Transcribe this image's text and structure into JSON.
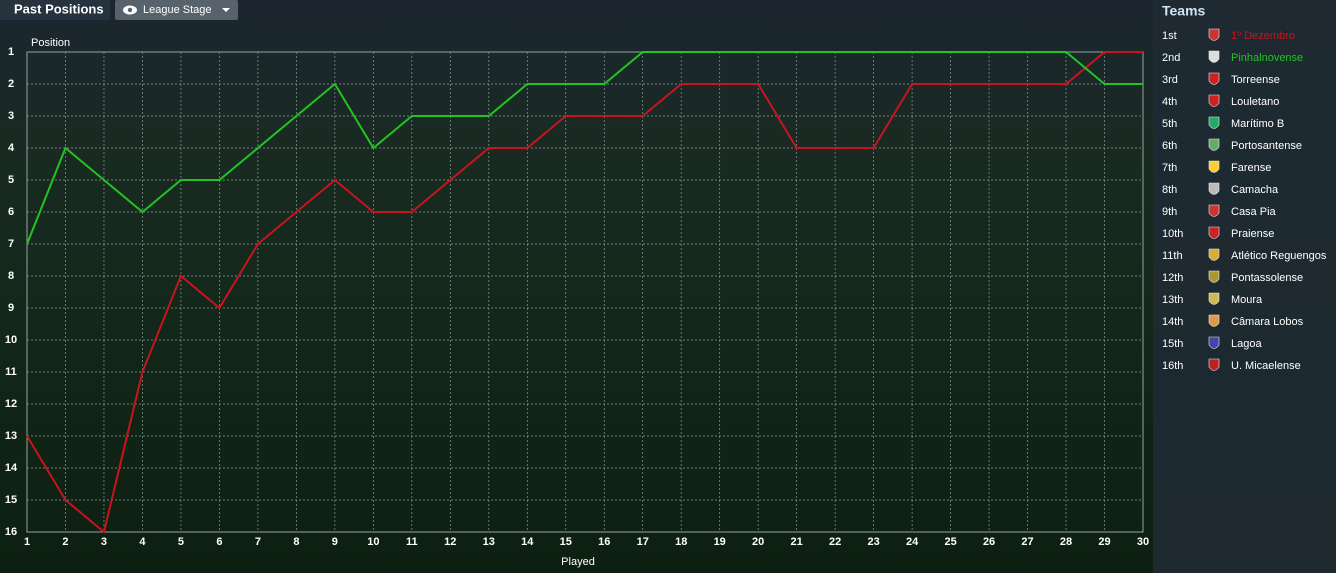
{
  "header": {
    "title": "Past Positions",
    "dropdown": "League Stage"
  },
  "chart_data": {
    "type": "line",
    "y_label": "Position",
    "x_label": "Played",
    "x": [
      1,
      2,
      3,
      4,
      5,
      6,
      7,
      8,
      9,
      10,
      11,
      12,
      13,
      14,
      15,
      16,
      17,
      18,
      19,
      20,
      21,
      22,
      23,
      24,
      25,
      26,
      27,
      28,
      29,
      30
    ],
    "xlim": [
      1,
      30
    ],
    "ylim": [
      16,
      1
    ],
    "xticks": [
      1,
      2,
      3,
      4,
      5,
      6,
      7,
      8,
      9,
      10,
      11,
      12,
      13,
      14,
      15,
      16,
      17,
      18,
      19,
      20,
      21,
      22,
      23,
      24,
      25,
      26,
      27,
      28,
      29,
      30
    ],
    "yticks": [
      1,
      2,
      3,
      4,
      5,
      6,
      7,
      8,
      9,
      10,
      11,
      12,
      13,
      14,
      15,
      16
    ],
    "grid": true,
    "series": [
      {
        "name": "1º Dezembro",
        "color": "#c8141e",
        "values": [
          13,
          15,
          16,
          11,
          8,
          9,
          7,
          6,
          5,
          6,
          6,
          5,
          4,
          4,
          3,
          3,
          3,
          2,
          2,
          2,
          4,
          4,
          4,
          2,
          2,
          2,
          2,
          2,
          1,
          1
        ]
      },
      {
        "name": "Pinhalnovense",
        "color": "#22c322",
        "values": [
          7,
          4,
          5,
          6,
          5,
          5,
          4,
          3,
          2,
          4,
          3,
          3,
          3,
          2,
          2,
          2,
          1,
          1,
          1,
          1,
          1,
          1,
          1,
          1,
          1,
          1,
          1,
          1,
          2,
          2
        ]
      }
    ]
  },
  "teams": {
    "title": "Teams",
    "rows": [
      {
        "rank": "1st"
      },
      {
        "rank": "2nd"
      },
      {
        "rank": "3rd",
        "name": "Torreense"
      },
      {
        "rank": "4th",
        "name": "Louletano"
      },
      {
        "rank": "5th",
        "name": "Marítimo B"
      },
      {
        "rank": "6th",
        "name": "Portosantense"
      },
      {
        "rank": "7th",
        "name": "Farense"
      },
      {
        "rank": "8th",
        "name": "Camacha"
      },
      {
        "rank": "9th",
        "name": "Casa Pia"
      },
      {
        "rank": "10th",
        "name": "Praiense"
      },
      {
        "rank": "11th",
        "name": "Atlético Reguengos"
      },
      {
        "rank": "12th",
        "name": "Pontassolense"
      },
      {
        "rank": "13th",
        "name": "Moura"
      },
      {
        "rank": "14th",
        "name": "Câmara Lobos"
      },
      {
        "rank": "15th",
        "name": "Lagoa"
      },
      {
        "rank": "16th",
        "name": "U. Micaelense"
      }
    ]
  }
}
